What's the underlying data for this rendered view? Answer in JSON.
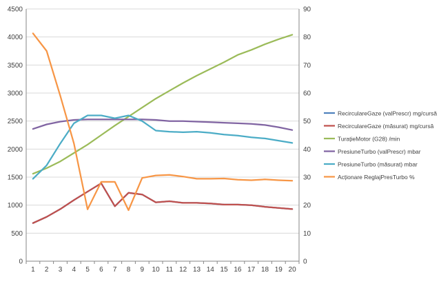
{
  "chart_data": {
    "type": "line",
    "title": "",
    "xlabel": "",
    "ylabel": "",
    "categories": [
      "1",
      "2",
      "3",
      "4",
      "5",
      "6",
      "7",
      "8",
      "9",
      "10",
      "11",
      "12",
      "13",
      "14",
      "15",
      "16",
      "17",
      "18",
      "19",
      "20"
    ],
    "y_left": {
      "min": 0,
      "max": 4500,
      "step": 500,
      "ticks": [
        "0",
        "500",
        "1000",
        "1500",
        "2000",
        "2500",
        "3000",
        "3500",
        "4000",
        "4500"
      ]
    },
    "y_right": {
      "min": 0,
      "max": 90,
      "step": 10,
      "ticks": [
        "0",
        "10",
        "20",
        "30",
        "40",
        "50",
        "60",
        "70",
        "80",
        "90"
      ]
    },
    "grid": true,
    "legend_position": "right",
    "series": [
      {
        "name": "RecirculareGaze (valPrescr)  mg/cursă",
        "axis": "left",
        "color": "#4f81bd",
        "values": [
          680,
          790,
          930,
          1090,
          1240,
          1390,
          980,
          1220,
          1190,
          1050,
          1070,
          1040,
          1040,
          1030,
          1010,
          1010,
          1000,
          970,
          950,
          930
        ]
      },
      {
        "name": "RecirculareGaze (măsurat)  mg/cursă",
        "axis": "left",
        "color": "#c0504d",
        "values": [
          680,
          790,
          930,
          1090,
          1240,
          1390,
          980,
          1220,
          1190,
          1050,
          1070,
          1040,
          1040,
          1030,
          1010,
          1010,
          1000,
          970,
          950,
          930
        ]
      },
      {
        "name": "TurațieMotor (G28)  /min",
        "axis": "left",
        "color": "#9bbb59",
        "values": [
          1560,
          1660,
          1780,
          1930,
          2080,
          2250,
          2420,
          2580,
          2740,
          2900,
          3040,
          3180,
          3310,
          3430,
          3550,
          3680,
          3770,
          3870,
          3960,
          4040
        ]
      },
      {
        "name": "PresiuneTurbo (valPrescr)  mbar",
        "axis": "left",
        "color": "#8064a2",
        "values": [
          2360,
          2440,
          2490,
          2520,
          2530,
          2530,
          2530,
          2530,
          2530,
          2520,
          2500,
          2500,
          2490,
          2480,
          2470,
          2460,
          2450,
          2430,
          2390,
          2340
        ]
      },
      {
        "name": "PresiuneTurbo (măsurat)  mbar",
        "axis": "left",
        "color": "#4bacc6",
        "values": [
          1470,
          1710,
          2100,
          2460,
          2600,
          2600,
          2550,
          2600,
          2500,
          2330,
          2310,
          2300,
          2310,
          2290,
          2260,
          2240,
          2210,
          2190,
          2150,
          2110
        ]
      },
      {
        "name": "Acționare ReglajPresTurbo  %",
        "axis": "right",
        "color": "#f79646",
        "values": [
          81.3,
          75,
          59,
          42,
          18.5,
          28.3,
          28.3,
          18.2,
          29.7,
          30.6,
          30.8,
          30.2,
          29.4,
          29.4,
          29.5,
          29.1,
          28.9,
          29.2,
          28.9,
          28.7
        ]
      }
    ]
  }
}
